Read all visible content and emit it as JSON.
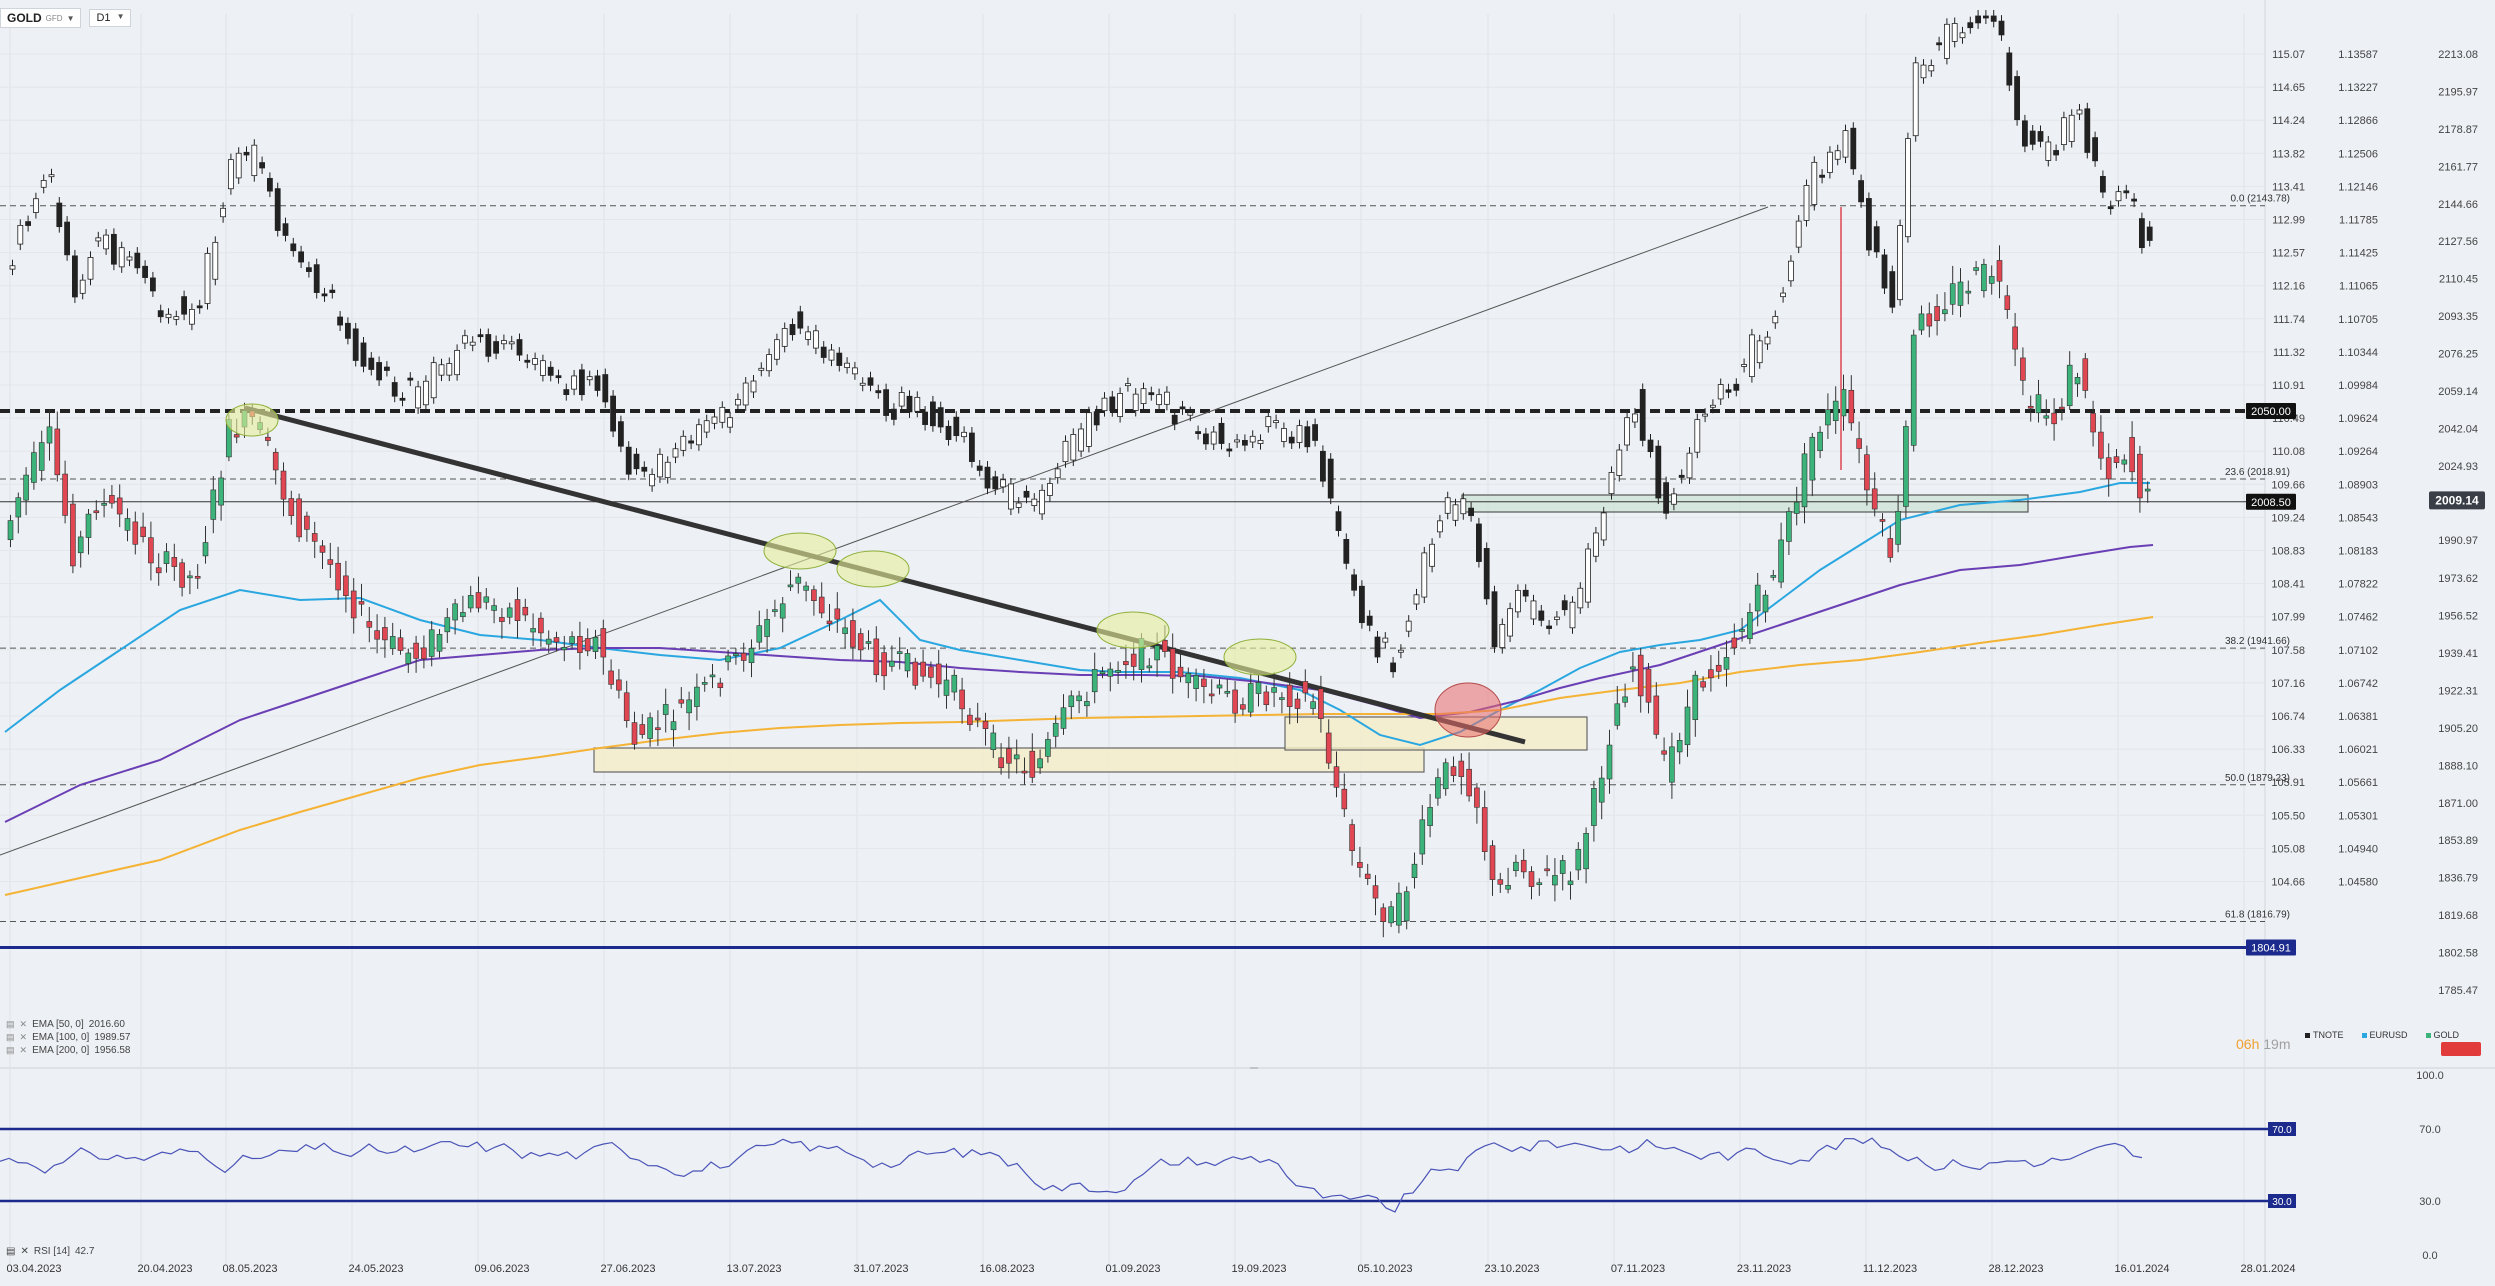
{
  "toolbar": {
    "symbol": "GOLD",
    "symbol_sub": "GFD",
    "timeframe": "D1"
  },
  "colors": {
    "up": "#3bb37a",
    "down": "#e04753",
    "ema50": "#2aa7e0",
    "ema100": "#6a3fb5",
    "ema200": "#f5b335",
    "navy": "#1b2a8c",
    "background": "#edf0f4"
  },
  "indicators": [
    {
      "label": "EMA [50, 0]",
      "value": "2016.60"
    },
    {
      "label": "EMA [100, 0]",
      "value": "1989.57"
    },
    {
      "label": "EMA [200, 0]",
      "value": "1956.58"
    }
  ],
  "rsi_label": "RSI [14]",
  "rsi_value": "42.7",
  "timer": {
    "hours": "06h",
    "minutes": "19m"
  },
  "compare_legend": [
    "TNOTE",
    "EURUSD",
    "GOLD"
  ],
  "chart_data": [
    {
      "type": "candlestick",
      "x_labels": [
        "03.04.2023",
        "20.04.2023",
        "08.05.2023",
        "24.05.2023",
        "09.06.2023",
        "27.06.2023",
        "13.07.2023",
        "31.07.2023",
        "16.08.2023",
        "01.09.2023",
        "19.09.2023",
        "05.10.2023",
        "23.10.2023",
        "07.11.2023",
        "23.11.2023",
        "11.12.2023",
        "28.12.2023",
        "16.01.2024",
        "28.01.2024"
      ],
      "axis_gold": [
        "2213.08",
        "2195.97",
        "2178.87",
        "2161.77",
        "2144.66",
        "2127.56",
        "2110.45",
        "2093.35",
        "2076.25",
        "2059.14",
        "2042.04",
        "2024.93",
        "1990.97",
        "1973.62",
        "1956.52",
        "1939.41",
        "1922.31",
        "1905.20",
        "1888.10",
        "1871.00",
        "1853.89",
        "1836.79",
        "1819.68",
        "1802.58",
        "1785.47"
      ],
      "axis_eurusd": [
        "1.13587",
        "1.13227",
        "1.12866",
        "1.12506",
        "1.12146",
        "1.11785",
        "1.11425",
        "1.11065",
        "1.10705",
        "1.10344",
        "1.09984",
        "1.09624",
        "1.09264",
        "1.08903",
        "1.08543",
        "1.08183",
        "1.07822",
        "1.07462",
        "1.07102",
        "1.06742",
        "1.06381",
        "1.06021",
        "1.05661",
        "1.05301",
        "1.04940",
        "1.04580"
      ],
      "axis_tnote": [
        "115.07",
        "114.65",
        "114.24",
        "113.82",
        "113.41",
        "112.99",
        "112.57",
        "112.16",
        "111.74",
        "111.32",
        "110.91",
        "110.49",
        "110.08",
        "109.66",
        "109.24",
        "108.83",
        "108.41",
        "107.99",
        "107.58",
        "107.16",
        "106.74",
        "106.33",
        "105.91",
        "105.50",
        "105.08",
        "104.66"
      ],
      "last_price": "2009.14",
      "price_levels": [
        {
          "label": "2050.00"
        },
        {
          "label": "2008.50"
        },
        {
          "label": "1804.91"
        }
      ],
      "fib_levels": [
        {
          "label": "0.0 (2143.78)"
        },
        {
          "label": "23.6 (2018.91)"
        },
        {
          "label": "38.2 (1941.66)"
        },
        {
          "label": "50.0 (1879.23)"
        },
        {
          "label": "61.8 (1816.79)"
        }
      ],
      "series": [
        {
          "name": "EMA [50, 0]"
        },
        {
          "name": "EMA [100, 0]"
        },
        {
          "name": "EMA [200, 0]"
        }
      ]
    },
    {
      "type": "line",
      "y_labels": [
        "100.0",
        "70.0",
        "30.0",
        "0.0"
      ],
      "levels": [
        "70.0",
        "30.0"
      ]
    }
  ]
}
